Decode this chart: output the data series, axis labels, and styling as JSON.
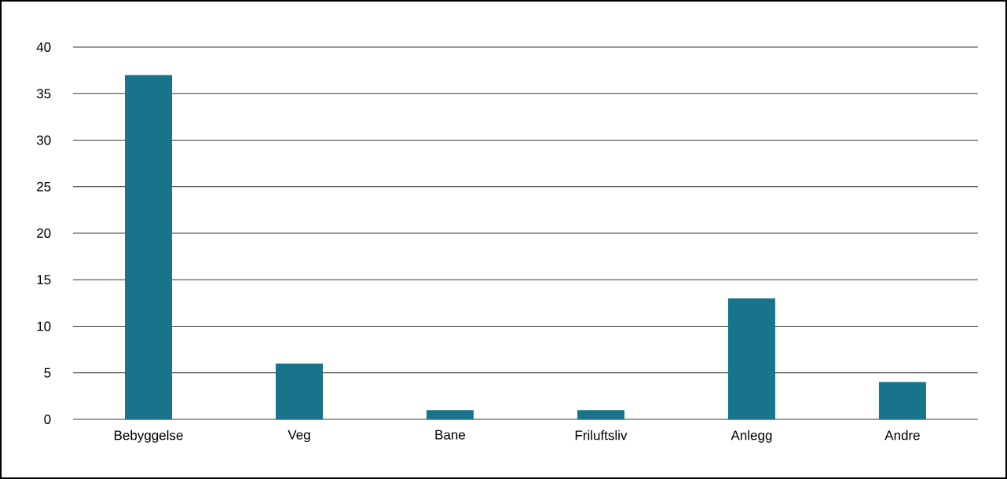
{
  "chart_data": {
    "type": "bar",
    "categories": [
      "Bebyggelse",
      "Veg",
      "Bane",
      "Friluftsliv",
      "Anlegg",
      "Andre"
    ],
    "values": [
      37,
      6,
      1,
      1,
      13,
      4
    ],
    "color": "#17748a",
    "ylim": [
      0,
      40
    ],
    "yticks": [
      0,
      5,
      10,
      15,
      20,
      25,
      30,
      35,
      40
    ],
    "grid": "y"
  }
}
